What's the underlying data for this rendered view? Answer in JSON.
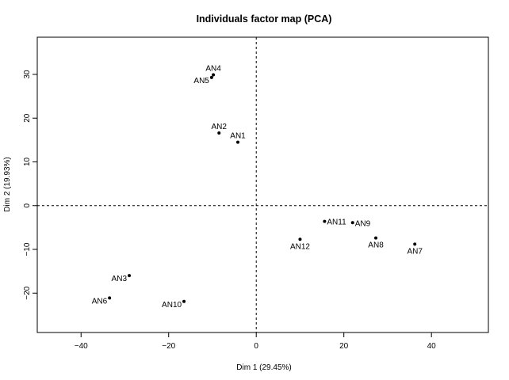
{
  "chart_data": {
    "type": "scatter",
    "title": "Individuals factor map (PCA)",
    "xlabel": "Dim 1 (29.45%)",
    "ylabel": "Dim 2 (19.93%)",
    "xlim": [
      -50,
      53
    ],
    "ylim": [
      -29,
      38.5
    ],
    "xticks": [
      -40,
      -20,
      0,
      20,
      40
    ],
    "yticks": [
      -20,
      -10,
      0,
      10,
      20,
      30
    ],
    "reference_lines": {
      "x": 0,
      "y": 0,
      "style": "dashed"
    },
    "grid": false,
    "points": [
      {
        "label": "AN1",
        "x": -4.2,
        "y": 14.5,
        "label_pos": "top"
      },
      {
        "label": "AN2",
        "x": -8.5,
        "y": 16.6,
        "label_pos": "top"
      },
      {
        "label": "AN3",
        "x": -29.0,
        "y": -16.0,
        "label_pos": "left"
      },
      {
        "label": "AN4",
        "x": -9.8,
        "y": 29.9,
        "label_pos": "top"
      },
      {
        "label": "AN5",
        "x": -10.2,
        "y": 29.3,
        "label_pos": "left"
      },
      {
        "label": "AN6",
        "x": -33.5,
        "y": -21.1,
        "label_pos": "left"
      },
      {
        "label": "AN7",
        "x": 36.2,
        "y": -8.8,
        "label_pos": "bottom"
      },
      {
        "label": "AN8",
        "x": 27.3,
        "y": -7.4,
        "label_pos": "bottom"
      },
      {
        "label": "AN9",
        "x": 22.0,
        "y": -3.9,
        "label_pos": "right"
      },
      {
        "label": "AN10",
        "x": -16.5,
        "y": -21.9,
        "label_pos": "left"
      },
      {
        "label": "AN11",
        "x": 15.6,
        "y": -3.6,
        "label_pos": "right"
      },
      {
        "label": "AN12",
        "x": 10.0,
        "y": -7.7,
        "label_pos": "bottom"
      }
    ]
  }
}
